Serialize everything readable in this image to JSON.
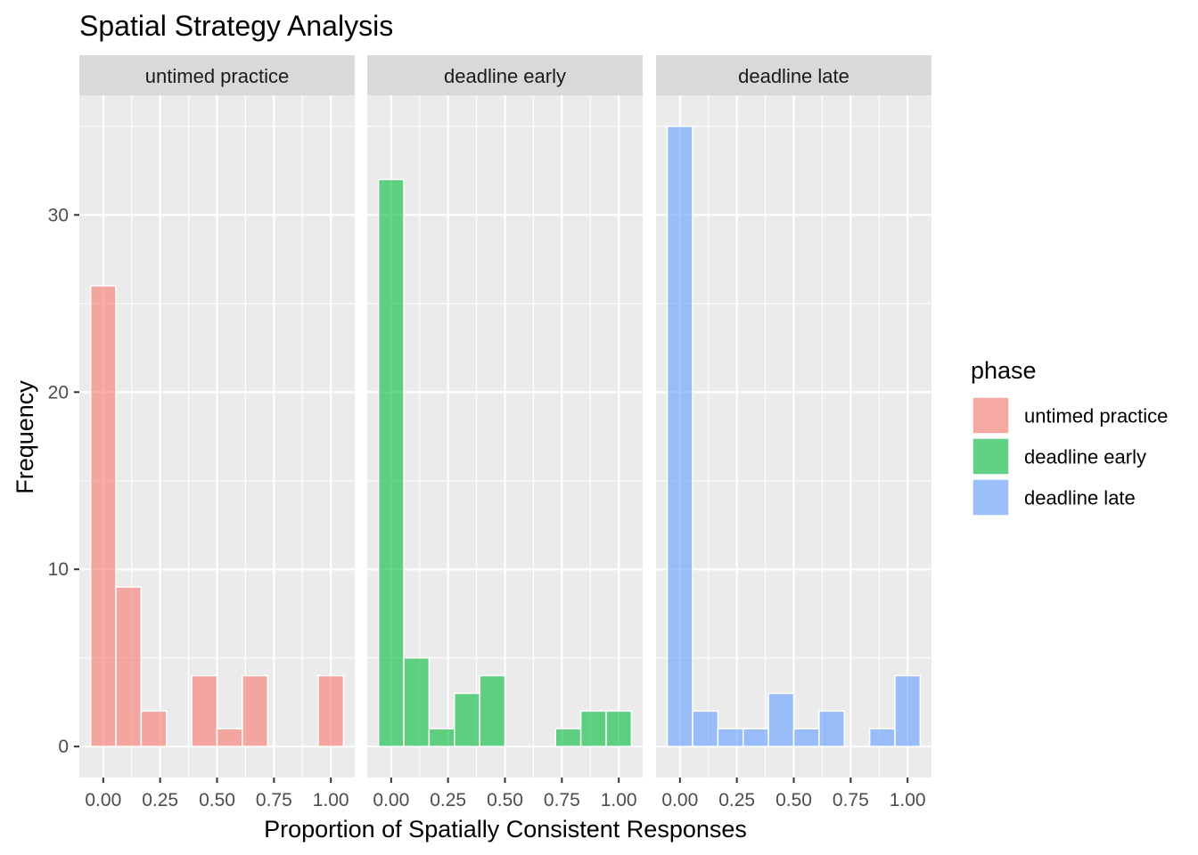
{
  "chart_data": {
    "type": "bar",
    "subtype": "faceted-histogram",
    "title": "Spatial Strategy Analysis",
    "xlabel": "Proportion of Spatially Consistent Responses",
    "ylabel": "Frequency",
    "xlim": [
      -0.105,
      1.105
    ],
    "ylim": [
      -1.75,
      36.75
    ],
    "x_ticks": [
      0,
      0.25,
      0.5,
      0.75,
      1
    ],
    "x_tick_labels": [
      "0.00",
      "0.25",
      "0.50",
      "0.75",
      "1.00"
    ],
    "y_ticks": [
      0,
      10,
      20,
      30
    ],
    "y_tick_labels": [
      "0",
      "10",
      "20",
      "30"
    ],
    "bin_width": 0.1111,
    "bin_centers": [
      0,
      0.1111,
      0.2222,
      0.3333,
      0.4444,
      0.5556,
      0.6667,
      0.7778,
      0.8889,
      1.0
    ],
    "grid": true,
    "legend_position": "right",
    "legend_title": "phase",
    "series": [
      {
        "name": "untimed practice",
        "color": "#f8766d",
        "counts": [
          26,
          9,
          2,
          0,
          4,
          1,
          4,
          0,
          0,
          4
        ]
      },
      {
        "name": "deadline early",
        "color": "#00ba38",
        "counts": [
          32,
          5,
          1,
          3,
          4,
          0,
          0,
          1,
          2,
          2
        ]
      },
      {
        "name": "deadline late",
        "color": "#619cff",
        "counts": [
          35,
          2,
          1,
          1,
          3,
          1,
          2,
          0,
          1,
          4
        ]
      }
    ]
  }
}
